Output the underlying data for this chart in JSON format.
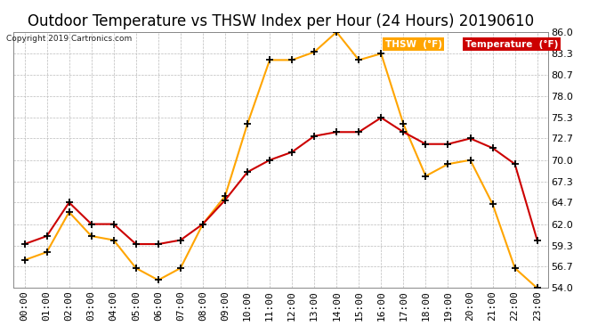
{
  "title": "Outdoor Temperature vs THSW Index per Hour (24 Hours) 20190610",
  "copyright": "Copyright 2019 Cartronics.com",
  "hours": [
    "00:00",
    "01:00",
    "02:00",
    "03:00",
    "04:00",
    "05:00",
    "06:00",
    "07:00",
    "08:00",
    "09:00",
    "10:00",
    "11:00",
    "12:00",
    "13:00",
    "14:00",
    "15:00",
    "16:00",
    "17:00",
    "18:00",
    "19:00",
    "20:00",
    "21:00",
    "22:00",
    "23:00"
  ],
  "thsw": [
    57.5,
    58.5,
    63.5,
    60.5,
    60.0,
    56.5,
    55.0,
    56.5,
    62.0,
    65.5,
    74.5,
    82.5,
    82.5,
    83.5,
    86.0,
    82.5,
    83.3,
    74.5,
    68.0,
    69.5,
    70.0,
    64.5,
    56.5,
    54.0
  ],
  "temperature": [
    59.5,
    60.5,
    64.7,
    62.0,
    62.0,
    59.5,
    59.5,
    60.0,
    62.0,
    65.0,
    68.5,
    70.0,
    71.0,
    73.0,
    73.5,
    73.5,
    75.3,
    73.5,
    72.0,
    72.0,
    72.7,
    71.5,
    69.5,
    60.0
  ],
  "thsw_color": "#FFA500",
  "temp_color": "#CC0000",
  "marker_color": "#000000",
  "ylim": [
    54.0,
    86.0
  ],
  "yticks": [
    54.0,
    56.7,
    59.3,
    62.0,
    64.7,
    67.3,
    70.0,
    72.7,
    75.3,
    78.0,
    80.7,
    83.3,
    86.0
  ],
  "legend_thsw_label": "THSW  (°F)",
  "legend_temp_label": "Temperature  (°F)",
  "legend_thsw_bg": "#FFA500",
  "legend_temp_bg": "#CC0000",
  "bg_color": "#ffffff",
  "grid_color": "#bbbbbb",
  "title_fontsize": 12,
  "tick_fontsize": 8,
  "copyright_fontsize": 6.5
}
